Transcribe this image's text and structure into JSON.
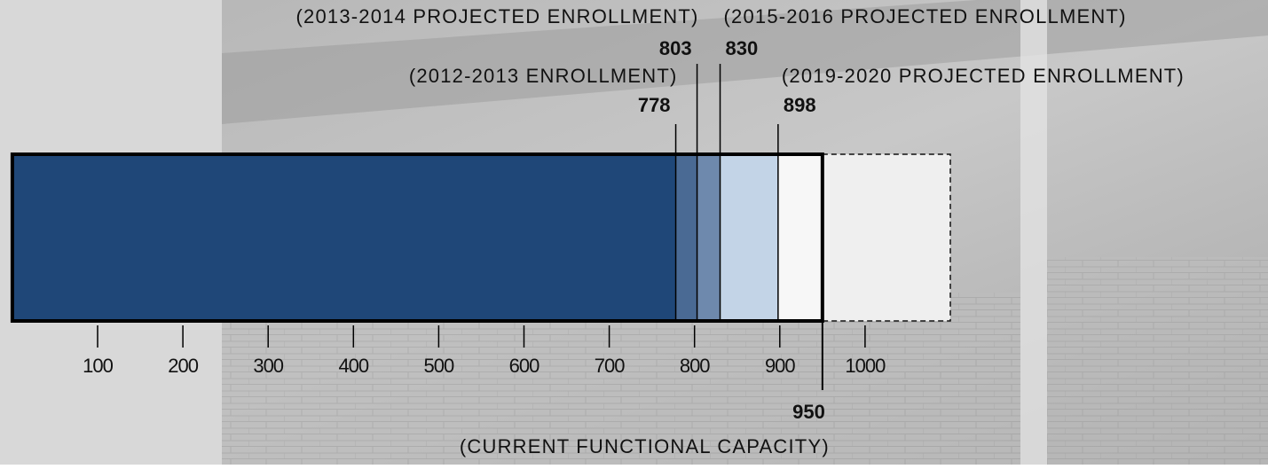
{
  "chart_data": {
    "type": "capacity-bar",
    "xlim": [
      0,
      1100
    ],
    "xticks": [
      100,
      200,
      300,
      400,
      500,
      600,
      700,
      800,
      900,
      1000
    ],
    "markers": [
      {
        "label": "(2012-2013 ENROLLMENT)",
        "value": 778,
        "color": "#1f4778"
      },
      {
        "label": "(2013-2014 PROJECTED ENROLLMENT)",
        "value": 803,
        "color": "#4a6a94"
      },
      {
        "label": "(2015-2016 PROJECTED ENROLLMENT)",
        "value": 830,
        "color": "#6e89ad"
      },
      {
        "label": "(2019-2020 PROJECTED ENROLLMENT)",
        "value": 898,
        "color": "#c3d4e7"
      }
    ],
    "capacity": {
      "label": "(CURRENT FUNCTIONAL CAPACITY)",
      "value": 950,
      "color": "#f7f7f7"
    },
    "beyond_color": "#efefef"
  }
}
